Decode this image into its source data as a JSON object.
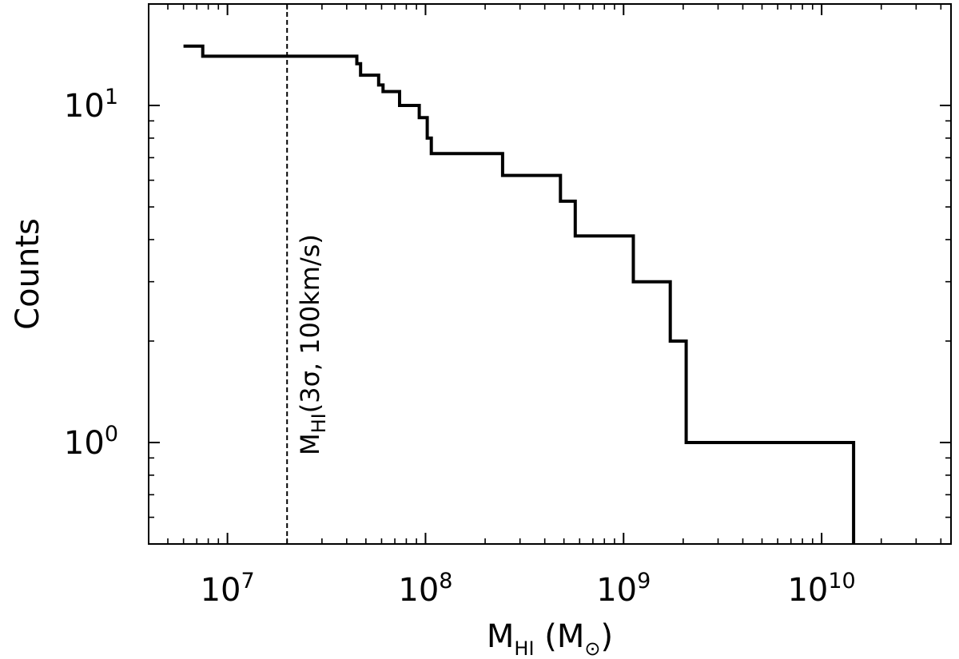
{
  "chart_data": {
    "type": "line",
    "style": "cumulative-step",
    "xlabel": {
      "main": "M",
      "sub": "HI",
      "rest": " (M",
      "sun": "⊙",
      "close": ")"
    },
    "ylabel": "Counts",
    "xscale": "log",
    "yscale": "log",
    "xlim": [
      4000000.0,
      45000000000.0
    ],
    "ylim": [
      0.5,
      20
    ],
    "x_ticks": [
      {
        "base": "10",
        "exp": "7",
        "value": 10000000.0
      },
      {
        "base": "10",
        "exp": "8",
        "value": 100000000.0
      },
      {
        "base": "10",
        "exp": "9",
        "value": 1000000000.0
      },
      {
        "base": "10",
        "exp": "10",
        "value": 10000000000.0
      }
    ],
    "y_ticks": [
      {
        "base": "10",
        "exp": "0",
        "value": 1
      },
      {
        "base": "10",
        "exp": "1",
        "value": 10
      }
    ],
    "series": [
      {
        "color": "#000000",
        "x": [
          6000000.0,
          7500000.0,
          7500000.0,
          45000000.0,
          45000000.0,
          47000000.0,
          47000000.0,
          58000000.0,
          58000000.0,
          61000000.0,
          61000000.0,
          74000000.0,
          74000000.0,
          93000000.0,
          93000000.0,
          102000000.0,
          102000000.0,
          107000000.0,
          107000000.0,
          245000000.0,
          245000000.0,
          480000000.0,
          480000000.0,
          570000000.0,
          570000000.0,
          1120000000.0,
          1120000000.0,
          1720000000.0,
          1720000000.0,
          2070000000.0,
          2070000000.0,
          14500000000.0,
          14500000000.0
        ],
        "y": [
          15,
          15,
          14,
          14,
          13.3,
          13.3,
          12.3,
          12.3,
          11.5,
          11.5,
          11,
          11,
          10,
          10,
          9.2,
          9.2,
          8,
          8,
          7.2,
          7.2,
          6.2,
          6.2,
          5.2,
          5.2,
          4.1,
          4.1,
          3,
          3,
          2,
          2,
          1,
          1,
          0.5
        ]
      }
    ],
    "annotations": [
      {
        "type": "vline",
        "x": 20000000.0,
        "style": "dashed",
        "label_main": "M",
        "label_sub": "HI",
        "label_rest": "(3σ, 100km/s)"
      }
    ]
  }
}
